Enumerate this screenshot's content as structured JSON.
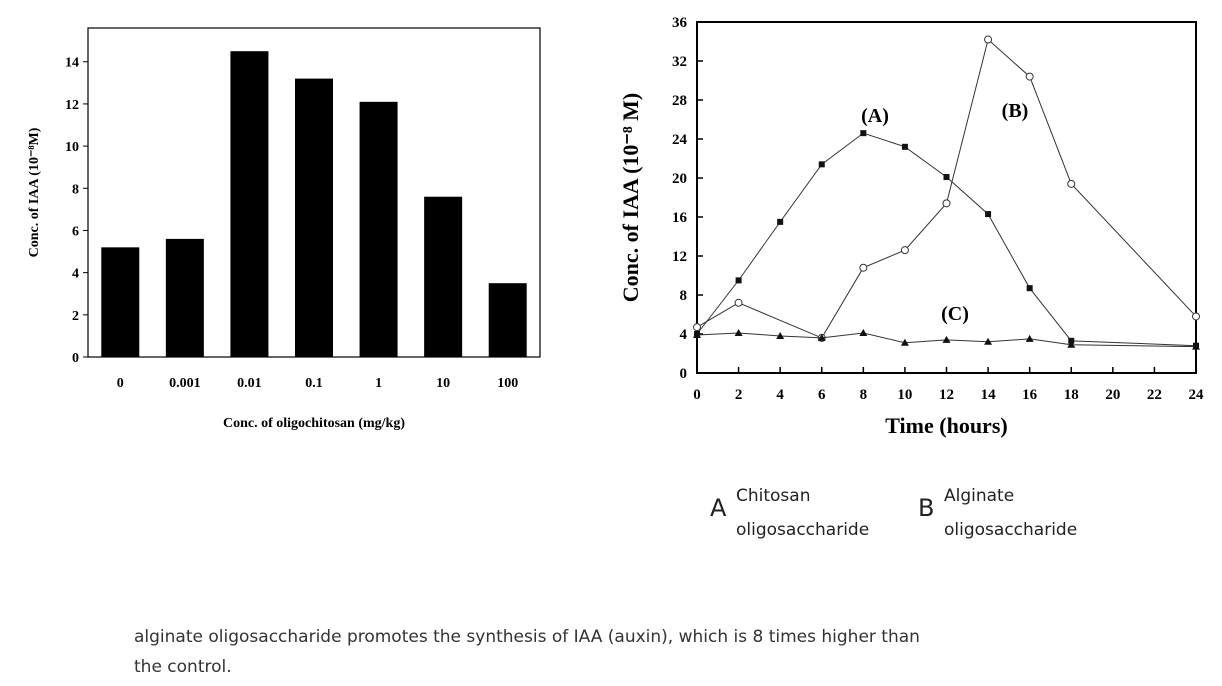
{
  "chart_data": [
    {
      "type": "bar",
      "ylabel": "Conc. of IAA (10⁻⁸M)",
      "xlabel": "Conc. of  oligochitosan (mg/kg)",
      "categories": [
        "0",
        "0.001",
        "0.01",
        "0.1",
        "1",
        "10",
        "100"
      ],
      "values": [
        5.2,
        5.6,
        14.5,
        13.2,
        12.1,
        7.6,
        3.5
      ],
      "color": "#000000",
      "ylim": [
        0,
        15.6
      ],
      "yticks": [
        0,
        2,
        4,
        6,
        8,
        10,
        12,
        14
      ]
    },
    {
      "type": "line",
      "ylabel": "Conc. of IAA (10⁻⁸ M)",
      "xlabel": "Time (hours)",
      "xlim": [
        0,
        24
      ],
      "xticks": [
        0,
        2,
        4,
        6,
        8,
        10,
        12,
        14,
        16,
        18,
        20,
        22,
        24
      ],
      "ylim": [
        0,
        36
      ],
      "yticks": [
        0,
        4,
        8,
        12,
        16,
        20,
        24,
        28,
        32,
        36
      ],
      "series": [
        {
          "name": "(A)",
          "color": "#333333",
          "marker": "square",
          "x": [
            0,
            2,
            4,
            6,
            8,
            10,
            12,
            14,
            16,
            18,
            24
          ],
          "values": [
            4.0,
            9.5,
            15.5,
            21.4,
            24.6,
            23.2,
            20.1,
            16.3,
            8.7,
            3.3,
            2.8
          ]
        },
        {
          "name": "(B)",
          "color": "#333333",
          "marker": "diamond",
          "x": [
            0,
            2,
            6,
            8,
            10,
            12,
            14,
            16,
            18,
            24
          ],
          "values": [
            4.7,
            7.2,
            3.6,
            10.8,
            12.6,
            17.4,
            34.2,
            30.4,
            19.4,
            5.8
          ]
        },
        {
          "name": "(C)",
          "color": "#333333",
          "marker": "triangle",
          "x": [
            0,
            2,
            4,
            6,
            8,
            10,
            12,
            14,
            16,
            18,
            24
          ],
          "values": [
            3.9,
            4.1,
            3.8,
            3.6,
            4.1,
            3.1,
            3.4,
            3.2,
            3.5,
            2.9,
            2.7
          ]
        }
      ]
    }
  ],
  "legend_notes": [
    {
      "letter": "A",
      "lines": [
        "Chitosan",
        "oligosaccharide"
      ]
    },
    {
      "letter": "B",
      "lines": [
        "Alginate",
        "oligosaccharide"
      ]
    }
  ],
  "caption": [
    "alginate oligosaccharide promotes the synthesis of IAA (auxin), which is 8 times higher than",
    "the control."
  ]
}
